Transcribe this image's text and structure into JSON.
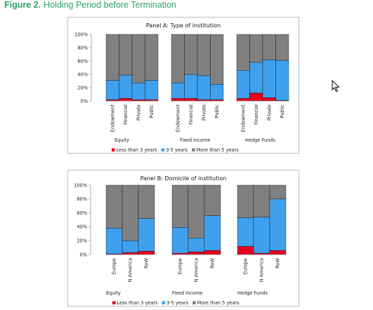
{
  "figure": {
    "label": "Figure 2.",
    "caption": "Holding Period before Termination"
  },
  "colors": {
    "lt3": "#e8001c",
    "y35": "#3fa0ee",
    "gt5": "#808080",
    "axis": "#999999",
    "title": "#2aa267"
  },
  "chart_data": [
    {
      "type": "bar",
      "stacked": true,
      "title": "Panel A: Type of institution",
      "ylim": [
        0,
        100
      ],
      "yticks": [
        "0%",
        "20%",
        "40%",
        "60%",
        "80%",
        "100%"
      ],
      "legend": {
        "position": "bottom",
        "entries": [
          "Less than 3 years",
          "3-5 years",
          "More than 5 years"
        ]
      },
      "groups": [
        {
          "name": "Equity",
          "categories": [
            "Endowment",
            "Financial",
            "Private",
            "Public"
          ],
          "series": [
            {
              "name": "Less than 3 years",
              "values": [
                2,
                4,
                2,
                2
              ]
            },
            {
              "name": "3-5 years",
              "values": [
                29,
                35,
                25,
                29
              ]
            },
            {
              "name": "More than 5 years",
              "values": [
                69,
                61,
                73,
                69
              ]
            }
          ]
        },
        {
          "name": "Fixed Income",
          "categories": [
            "Endowment",
            "Financial",
            "Private",
            "Public"
          ],
          "series": [
            {
              "name": "Less than 3 years",
              "values": [
                4,
                4,
                2,
                2
              ]
            },
            {
              "name": "3-5 years",
              "values": [
                23,
                36,
                36,
                23
              ]
            },
            {
              "name": "More than 5 years",
              "values": [
                73,
                60,
                62,
                75
              ]
            }
          ]
        },
        {
          "name": "Hedge Funds",
          "categories": [
            "Endowment",
            "Financial",
            "Private",
            "Public"
          ],
          "series": [
            {
              "name": "Less than 3 years",
              "values": [
                4,
                12,
                5,
                1
              ]
            },
            {
              "name": "3-5 years",
              "values": [
                42,
                46,
                57,
                60
              ]
            },
            {
              "name": "More than 5 years",
              "values": [
                54,
                42,
                38,
                39
              ]
            }
          ]
        }
      ]
    },
    {
      "type": "bar",
      "stacked": true,
      "title": "Panel B: Domicile of institution",
      "ylim": [
        0,
        100
      ],
      "yticks": [
        "0%",
        "20%",
        "40%",
        "60%",
        "80%",
        "100%"
      ],
      "legend": {
        "position": "bottom",
        "entries": [
          "Less than 3 years",
          "3-5 years",
          "More than 5 years"
        ]
      },
      "groups": [
        {
          "name": "Equity",
          "categories": [
            "Europe",
            "N America",
            "RoW"
          ],
          "series": [
            {
              "name": "Less than 3 years",
              "values": [
                1,
                3,
                5
              ]
            },
            {
              "name": "3-5 years",
              "values": [
                37,
                17,
                47
              ]
            },
            {
              "name": "More than 5 years",
              "values": [
                62,
                80,
                48
              ]
            }
          ]
        },
        {
          "name": "Fixed Income",
          "categories": [
            "Europe",
            "N America",
            "RoW"
          ],
          "series": [
            {
              "name": "Less than 3 years",
              "values": [
                2,
                4,
                6
              ]
            },
            {
              "name": "3-5 years",
              "values": [
                37,
                20,
                50
              ]
            },
            {
              "name": "More than 5 years",
              "values": [
                61,
                76,
                44
              ]
            }
          ]
        },
        {
          "name": "Hedge Funds",
          "categories": [
            "Europe",
            "N America",
            "RoW"
          ],
          "series": [
            {
              "name": "Less than 3 years",
              "values": [
                12,
                2,
                6
              ]
            },
            {
              "name": "3-5 years",
              "values": [
                41,
                52,
                74
              ]
            },
            {
              "name": "More than 5 years",
              "values": [
                47,
                46,
                20
              ]
            }
          ]
        }
      ]
    }
  ]
}
